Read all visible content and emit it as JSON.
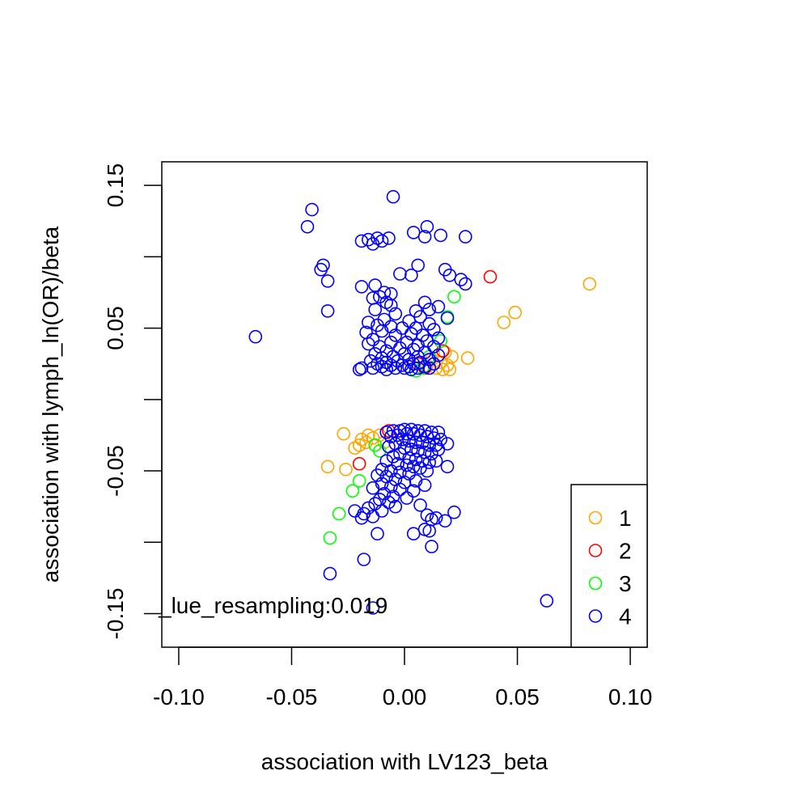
{
  "chart_data": {
    "type": "scatter",
    "title": "",
    "xlabel": "association with LV123_beta",
    "ylabel": "association with lymph_ln(OR)/beta",
    "xlim": [
      -0.1075,
      0.1075
    ],
    "ylim": [
      -0.1735,
      0.1665
    ],
    "x_ticks": [
      -0.1,
      -0.05,
      0.0,
      0.05,
      0.1
    ],
    "x_tick_labels": [
      "-0.10",
      "-0.05",
      "0.00",
      "0.05",
      "0.10"
    ],
    "y_ticks": [
      -0.15,
      -0.1,
      -0.05,
      0.0,
      0.05,
      0.1,
      0.15
    ],
    "y_tick_labels": [
      "-0.15",
      "",
      "-0.05",
      "",
      "0.05",
      "",
      "0.15"
    ],
    "grid": false,
    "legend_position": "bottom-right",
    "annotation": "_lue_resampling:0.019",
    "series": [
      {
        "name": "1",
        "color": "#FFA500",
        "points": [
          [
            0.082,
            0.081
          ],
          [
            0.049,
            0.061
          ],
          [
            0.044,
            0.054
          ],
          [
            0.028,
            0.029
          ],
          [
            0.021,
            0.03
          ],
          [
            0.019,
            0.024
          ],
          [
            0.018,
            0.033
          ],
          [
            0.016,
            0.026
          ],
          [
            0.014,
            0.022
          ],
          [
            0.012,
            0.028
          ],
          [
            0.017,
            0.021
          ],
          [
            0.01,
            0.024
          ],
          [
            0.02,
            0.021
          ],
          [
            -0.027,
            -0.024
          ],
          [
            -0.022,
            -0.034
          ],
          [
            -0.02,
            -0.032
          ],
          [
            -0.019,
            -0.028
          ],
          [
            -0.017,
            -0.03
          ],
          [
            -0.016,
            -0.025
          ],
          [
            -0.014,
            -0.027
          ],
          [
            -0.013,
            -0.032
          ],
          [
            -0.011,
            -0.025
          ],
          [
            -0.009,
            -0.03
          ],
          [
            -0.034,
            -0.047
          ],
          [
            -0.026,
            -0.049
          ]
        ]
      },
      {
        "name": "2",
        "color": "#FF0000",
        "points": [
          [
            0.038,
            0.086
          ],
          [
            0.017,
            0.034
          ],
          [
            0.009,
            0.022
          ],
          [
            0.006,
            0.025
          ],
          [
            -0.007,
            -0.022
          ],
          [
            -0.02,
            -0.045
          ]
        ]
      },
      {
        "name": "3",
        "color": "#00FF00",
        "points": [
          [
            0.022,
            0.072
          ],
          [
            0.019,
            0.058
          ],
          [
            0.016,
            0.041
          ],
          [
            0.011,
            0.03
          ],
          [
            0.008,
            0.022
          ],
          [
            0.005,
            0.02
          ],
          [
            -0.011,
            -0.036
          ],
          [
            -0.013,
            -0.032
          ],
          [
            -0.02,
            -0.057
          ],
          [
            -0.023,
            -0.064
          ],
          [
            -0.029,
            -0.08
          ],
          [
            -0.033,
            -0.097
          ]
        ]
      },
      {
        "name": "4",
        "color": "#0000FF",
        "points": [
          [
            -0.005,
            0.142
          ],
          [
            -0.041,
            0.133
          ],
          [
            -0.043,
            0.121
          ],
          [
            0.01,
            0.121
          ],
          [
            0.004,
            0.117
          ],
          [
            0.009,
            0.114
          ],
          [
            0.016,
            0.115
          ],
          [
            0.027,
            0.114
          ],
          [
            -0.007,
            0.113
          ],
          [
            -0.012,
            0.113
          ],
          [
            -0.016,
            0.112
          ],
          [
            -0.019,
            0.111
          ],
          [
            -0.01,
            0.111
          ],
          [
            -0.014,
            0.109
          ],
          [
            -0.036,
            0.094
          ],
          [
            -0.037,
            0.091
          ],
          [
            0.006,
            0.094
          ],
          [
            0.018,
            0.091
          ],
          [
            -0.002,
            0.088
          ],
          [
            0.02,
            0.087
          ],
          [
            0.003,
            0.087
          ],
          [
            0.025,
            0.084
          ],
          [
            0.027,
            0.081
          ],
          [
            -0.034,
            0.083
          ],
          [
            -0.013,
            0.08
          ],
          [
            -0.019,
            0.079
          ],
          [
            -0.009,
            0.075
          ],
          [
            -0.006,
            0.074
          ],
          [
            -0.011,
            0.072
          ],
          [
            -0.014,
            0.071
          ],
          [
            -0.008,
            0.068
          ],
          [
            0.009,
            0.068
          ],
          [
            -0.006,
            0.066
          ],
          [
            0.015,
            0.065
          ],
          [
            -0.013,
            0.063
          ],
          [
            0.011,
            0.063
          ],
          [
            0.005,
            0.062
          ],
          [
            -0.034,
            0.062
          ],
          [
            -0.004,
            0.06
          ],
          [
            0.007,
            0.058
          ],
          [
            0.019,
            0.057
          ],
          [
            -0.009,
            0.056
          ],
          [
            0.002,
            0.055
          ],
          [
            -0.016,
            0.054
          ],
          [
            -0.012,
            0.052
          ],
          [
            0.011,
            0.053
          ],
          [
            -0.006,
            0.051
          ],
          [
            0.005,
            0.05
          ],
          [
            -0.001,
            0.05
          ],
          [
            0.013,
            0.049
          ],
          [
            -0.01,
            0.048
          ],
          [
            -0.017,
            0.047
          ],
          [
            0.003,
            0.046
          ],
          [
            0.008,
            0.045
          ],
          [
            -0.004,
            0.045
          ],
          [
            -0.066,
            0.044
          ],
          [
            0.015,
            0.043
          ],
          [
            -0.014,
            0.042
          ],
          [
            0.01,
            0.041
          ],
          [
            0.001,
            0.04
          ],
          [
            -0.006,
            0.04
          ],
          [
            -0.016,
            0.039
          ],
          [
            0.006,
            0.038
          ],
          [
            -0.011,
            0.037
          ],
          [
            0.013,
            0.037
          ],
          [
            -0.002,
            0.036
          ],
          [
            0.004,
            0.035
          ],
          [
            -0.008,
            0.034
          ],
          [
            0.009,
            0.033
          ],
          [
            -0.013,
            0.032
          ],
          [
            0.0,
            0.032
          ],
          [
            0.015,
            0.031
          ],
          [
            -0.005,
            0.03
          ],
          [
            0.006,
            0.03
          ],
          [
            -0.01,
            0.029
          ],
          [
            0.011,
            0.028
          ],
          [
            0.002,
            0.028
          ],
          [
            -0.015,
            0.027
          ],
          [
            -0.003,
            0.027
          ],
          [
            0.007,
            0.026
          ],
          [
            -0.008,
            0.026
          ],
          [
            0.013,
            0.025
          ],
          [
            -0.012,
            0.025
          ],
          [
            0.004,
            0.025
          ],
          [
            -0.001,
            0.024
          ],
          [
            -0.006,
            0.024
          ],
          [
            0.009,
            0.023
          ],
          [
            -0.01,
            0.023
          ],
          [
            0.002,
            0.023
          ],
          [
            -0.004,
            0.022
          ],
          [
            0.006,
            0.022
          ],
          [
            -0.014,
            0.022
          ],
          [
            0.011,
            0.022
          ],
          [
            0.0,
            0.022
          ],
          [
            -0.008,
            0.021
          ],
          [
            0.003,
            0.021
          ],
          [
            -0.02,
            0.021
          ],
          [
            -0.019,
            0.022
          ],
          [
            0.0,
            -0.021
          ],
          [
            0.003,
            -0.021
          ],
          [
            -0.002,
            -0.022
          ],
          [
            0.006,
            -0.022
          ],
          [
            0.009,
            -0.022
          ],
          [
            -0.005,
            -0.022
          ],
          [
            0.012,
            -0.023
          ],
          [
            0.015,
            -0.023
          ],
          [
            -0.008,
            -0.023
          ],
          [
            0.001,
            -0.024
          ],
          [
            0.004,
            -0.024
          ],
          [
            0.007,
            -0.025
          ],
          [
            -0.003,
            -0.025
          ],
          [
            0.01,
            -0.026
          ],
          [
            -0.006,
            -0.026
          ],
          [
            0.013,
            -0.027
          ],
          [
            0.016,
            -0.028
          ],
          [
            -0.001,
            -0.028
          ],
          [
            0.002,
            -0.029
          ],
          [
            0.005,
            -0.03
          ],
          [
            0.008,
            -0.03
          ],
          [
            -0.004,
            -0.031
          ],
          [
            0.011,
            -0.032
          ],
          [
            0.014,
            -0.032
          ],
          [
            0.019,
            -0.031
          ],
          [
            -0.007,
            -0.033
          ],
          [
            0.0,
            -0.034
          ],
          [
            0.003,
            -0.035
          ],
          [
            0.006,
            -0.036
          ],
          [
            0.009,
            -0.037
          ],
          [
            -0.002,
            -0.038
          ],
          [
            0.012,
            -0.038
          ],
          [
            0.015,
            -0.035
          ],
          [
            -0.005,
            -0.04
          ],
          [
            0.002,
            -0.041
          ],
          [
            0.005,
            -0.042
          ],
          [
            0.008,
            -0.043
          ],
          [
            -0.008,
            -0.043
          ],
          [
            0.011,
            -0.044
          ],
          [
            0.014,
            -0.043
          ],
          [
            -0.003,
            -0.045
          ],
          [
            0.001,
            -0.046
          ],
          [
            0.004,
            -0.047
          ],
          [
            0.007,
            -0.048
          ],
          [
            0.019,
            -0.047
          ],
          [
            -0.01,
            -0.049
          ],
          [
            -0.006,
            -0.05
          ],
          [
            -0.002,
            -0.051
          ],
          [
            0.002,
            -0.052
          ],
          [
            0.01,
            -0.05
          ],
          [
            -0.012,
            -0.053
          ],
          [
            -0.008,
            -0.054
          ],
          [
            -0.004,
            -0.056
          ],
          [
            0.0,
            -0.058
          ],
          [
            0.005,
            -0.057
          ],
          [
            -0.01,
            -0.059
          ],
          [
            -0.006,
            -0.061
          ],
          [
            0.009,
            -0.06
          ],
          [
            -0.014,
            -0.062
          ],
          [
            -0.002,
            -0.063
          ],
          [
            0.004,
            -0.064
          ],
          [
            -0.009,
            -0.066
          ],
          [
            -0.005,
            -0.068
          ],
          [
            0.001,
            -0.069
          ],
          [
            -0.011,
            -0.07
          ],
          [
            -0.007,
            -0.072
          ],
          [
            -0.013,
            -0.073
          ],
          [
            -0.004,
            -0.075
          ],
          [
            0.007,
            -0.074
          ],
          [
            -0.016,
            -0.076
          ],
          [
            -0.01,
            -0.078
          ],
          [
            0.022,
            -0.079
          ],
          [
            -0.022,
            -0.078
          ],
          [
            -0.018,
            -0.08
          ],
          [
            -0.014,
            -0.082
          ],
          [
            0.01,
            -0.081
          ],
          [
            0.014,
            -0.083
          ],
          [
            -0.019,
            -0.083
          ],
          [
            0.012,
            -0.084
          ],
          [
            0.018,
            -0.085
          ],
          [
            0.009,
            -0.091
          ],
          [
            -0.012,
            -0.094
          ],
          [
            0.004,
            -0.094
          ],
          [
            0.011,
            -0.092
          ],
          [
            0.012,
            -0.103
          ],
          [
            -0.018,
            -0.112
          ],
          [
            -0.033,
            -0.122
          ],
          [
            0.063,
            -0.141
          ],
          [
            -0.014,
            -0.146
          ]
        ]
      }
    ]
  }
}
